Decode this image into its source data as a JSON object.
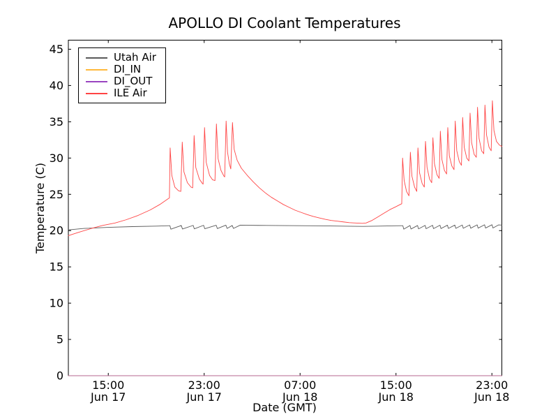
{
  "window": {
    "background": "#ffffff"
  },
  "chart_data": {
    "type": "line",
    "title": "APOLLO DI Coolant Temperatures",
    "xlabel": "Date (GMT)",
    "ylabel": "Temperature (C)",
    "x_unit": "hours_since_Jun17_0000_GMT",
    "xlim": [
      11.67,
      47.83
    ],
    "ylim": [
      0,
      46.25
    ],
    "grid": false,
    "legend_position": "upper-left",
    "x_ticks": [
      {
        "value": 15,
        "time": "15:00",
        "date": "Jun 17"
      },
      {
        "value": 23,
        "time": "23:00",
        "date": "Jun 17"
      },
      {
        "value": 31,
        "time": "07:00",
        "date": "Jun 18"
      },
      {
        "value": 39,
        "time": "15:00",
        "date": "Jun 18"
      },
      {
        "value": 47,
        "time": "23:00",
        "date": "Jun 18"
      }
    ],
    "y_ticks": [
      0,
      5,
      10,
      15,
      20,
      25,
      30,
      35,
      40,
      45
    ],
    "series": [
      {
        "name": "Utah Air",
        "color": "#595959",
        "width": 0.9,
        "opacity": 1,
        "points": [
          [
            11.67,
            20.1
          ],
          [
            13,
            20.3
          ],
          [
            15,
            20.45
          ],
          [
            17,
            20.55
          ],
          [
            19,
            20.62
          ],
          [
            20.1,
            20.68
          ],
          [
            20.14,
            20.68
          ],
          [
            20.22,
            20.2
          ],
          [
            21.09,
            20.7
          ],
          [
            21.19,
            20.22
          ],
          [
            22.08,
            20.72
          ],
          [
            22.18,
            20.24
          ],
          [
            22.95,
            20.73
          ],
          [
            23.05,
            20.26
          ],
          [
            24.0,
            20.74
          ],
          [
            24.1,
            20.28
          ],
          [
            24.81,
            20.75
          ],
          [
            24.91,
            20.3
          ],
          [
            25.34,
            20.7
          ],
          [
            25.44,
            20.3
          ],
          [
            26.0,
            20.75
          ],
          [
            27.5,
            20.72
          ],
          [
            29,
            20.7
          ],
          [
            31,
            20.68
          ],
          [
            33,
            20.65
          ],
          [
            35,
            20.6
          ],
          [
            36.3,
            20.58
          ],
          [
            37.5,
            20.62
          ],
          [
            39.0,
            20.66
          ],
          [
            39.5,
            20.68
          ],
          [
            39.57,
            20.68
          ],
          [
            39.65,
            20.2
          ],
          [
            40.17,
            20.7
          ],
          [
            40.25,
            20.22
          ],
          [
            40.8,
            20.7
          ],
          [
            40.88,
            20.24
          ],
          [
            41.43,
            20.72
          ],
          [
            41.51,
            20.26
          ],
          [
            42.05,
            20.73
          ],
          [
            42.13,
            20.27
          ],
          [
            42.67,
            20.74
          ],
          [
            42.75,
            20.28
          ],
          [
            43.29,
            20.75
          ],
          [
            43.37,
            20.3
          ],
          [
            43.91,
            20.76
          ],
          [
            43.99,
            20.31
          ],
          [
            44.53,
            20.77
          ],
          [
            44.61,
            20.32
          ],
          [
            45.15,
            20.78
          ],
          [
            45.23,
            20.33
          ],
          [
            45.77,
            20.79
          ],
          [
            45.85,
            20.34
          ],
          [
            46.39,
            20.8
          ],
          [
            46.47,
            20.35
          ],
          [
            47.01,
            20.81
          ],
          [
            47.09,
            20.36
          ],
          [
            47.55,
            20.78
          ],
          [
            47.83,
            20.76
          ]
        ]
      },
      {
        "name": "DI_IN",
        "color": "#ffb93b",
        "width": 1.0,
        "opacity": 0.9,
        "points": [
          [
            11.67,
            0
          ],
          [
            47.83,
            0
          ]
        ]
      },
      {
        "name": "DI_OUT",
        "color": "#9944c0",
        "width": 1.0,
        "opacity": 0.65,
        "points": [
          [
            11.67,
            0
          ],
          [
            47.83,
            0
          ]
        ]
      },
      {
        "name": "ILE Air",
        "color": "#ff4444",
        "width": 0.9,
        "opacity": 1,
        "points": [
          [
            11.67,
            19.3
          ],
          [
            12.5,
            19.75
          ],
          [
            13.5,
            20.25
          ],
          [
            14.5,
            20.7
          ],
          [
            15.57,
            21.05
          ],
          [
            16.5,
            21.5
          ],
          [
            17.5,
            22.1
          ],
          [
            18.5,
            22.85
          ],
          [
            19.3,
            23.6
          ],
          [
            20.0,
            24.4
          ],
          [
            20.1,
            24.5
          ],
          [
            20.16,
            31.4
          ],
          [
            20.3,
            27.6
          ],
          [
            20.55,
            26.0
          ],
          [
            20.85,
            25.5
          ],
          [
            21.05,
            25.4
          ],
          [
            21.17,
            32.2
          ],
          [
            21.31,
            28.1
          ],
          [
            21.6,
            26.6
          ],
          [
            21.9,
            26.0
          ],
          [
            22.04,
            25.9
          ],
          [
            22.16,
            33.1
          ],
          [
            22.3,
            28.7
          ],
          [
            22.6,
            27.1
          ],
          [
            22.85,
            26.5
          ],
          [
            22.91,
            26.4
          ],
          [
            23.03,
            34.2
          ],
          [
            23.17,
            29.4
          ],
          [
            23.45,
            27.6
          ],
          [
            23.7,
            27.0
          ],
          [
            23.9,
            26.9
          ],
          [
            24.02,
            34.7
          ],
          [
            24.16,
            29.9
          ],
          [
            24.4,
            28.3
          ],
          [
            24.65,
            27.5
          ],
          [
            24.71,
            27.4
          ],
          [
            24.83,
            35.1
          ],
          [
            24.95,
            30.8
          ],
          [
            25.1,
            29.2
          ],
          [
            25.22,
            28.5
          ],
          [
            25.36,
            34.9
          ],
          [
            25.5,
            31.2
          ],
          [
            25.75,
            29.7
          ],
          [
            26.1,
            28.6
          ],
          [
            26.6,
            27.6
          ],
          [
            27.1,
            26.7
          ],
          [
            27.6,
            25.9
          ],
          [
            28.1,
            25.2
          ],
          [
            28.6,
            24.6
          ],
          [
            29.1,
            24.1
          ],
          [
            29.6,
            23.6
          ],
          [
            30.1,
            23.2
          ],
          [
            30.6,
            22.8
          ],
          [
            31.1,
            22.5
          ],
          [
            31.6,
            22.2
          ],
          [
            32.1,
            21.95
          ],
          [
            32.6,
            21.75
          ],
          [
            33.1,
            21.55
          ],
          [
            33.6,
            21.4
          ],
          [
            34.1,
            21.3
          ],
          [
            34.6,
            21.2
          ],
          [
            35.1,
            21.1
          ],
          [
            35.6,
            21.05
          ],
          [
            36.2,
            21.0
          ],
          [
            36.5,
            21.05
          ],
          [
            37.0,
            21.4
          ],
          [
            37.5,
            21.9
          ],
          [
            38.0,
            22.4
          ],
          [
            38.5,
            22.9
          ],
          [
            39.0,
            23.3
          ],
          [
            39.35,
            23.6
          ],
          [
            39.48,
            23.7
          ],
          [
            39.55,
            30.0
          ],
          [
            39.68,
            26.9
          ],
          [
            39.88,
            25.4
          ],
          [
            40.08,
            24.8
          ],
          [
            40.2,
            30.8
          ],
          [
            40.33,
            27.5
          ],
          [
            40.55,
            26.0
          ],
          [
            40.73,
            25.4
          ],
          [
            40.83,
            31.4
          ],
          [
            40.96,
            28.0
          ],
          [
            41.18,
            26.5
          ],
          [
            41.36,
            26.0
          ],
          [
            41.46,
            32.3
          ],
          [
            41.59,
            28.7
          ],
          [
            41.8,
            27.1
          ],
          [
            41.98,
            26.6
          ],
          [
            42.08,
            32.8
          ],
          [
            42.21,
            29.2
          ],
          [
            42.42,
            27.7
          ],
          [
            42.6,
            27.2
          ],
          [
            42.7,
            33.7
          ],
          [
            42.83,
            29.8
          ],
          [
            43.04,
            28.3
          ],
          [
            43.22,
            27.8
          ],
          [
            43.32,
            34.2
          ],
          [
            43.45,
            30.3
          ],
          [
            43.66,
            28.9
          ],
          [
            43.84,
            28.4
          ],
          [
            43.94,
            35.1
          ],
          [
            44.07,
            31.0
          ],
          [
            44.28,
            29.5
          ],
          [
            44.46,
            29.0
          ],
          [
            44.56,
            35.6
          ],
          [
            44.69,
            31.5
          ],
          [
            44.9,
            30.0
          ],
          [
            45.08,
            29.6
          ],
          [
            45.18,
            36.2
          ],
          [
            45.31,
            32.1
          ],
          [
            45.52,
            30.5
          ],
          [
            45.7,
            30.1
          ],
          [
            45.8,
            37.0
          ],
          [
            45.93,
            32.7
          ],
          [
            46.14,
            31.0
          ],
          [
            46.32,
            30.6
          ],
          [
            46.42,
            37.3
          ],
          [
            46.55,
            33.2
          ],
          [
            46.76,
            31.5
          ],
          [
            46.94,
            31.0
          ],
          [
            47.04,
            37.9
          ],
          [
            47.17,
            33.8
          ],
          [
            47.38,
            32.3
          ],
          [
            47.62,
            31.8
          ],
          [
            47.83,
            31.6
          ]
        ]
      }
    ]
  }
}
